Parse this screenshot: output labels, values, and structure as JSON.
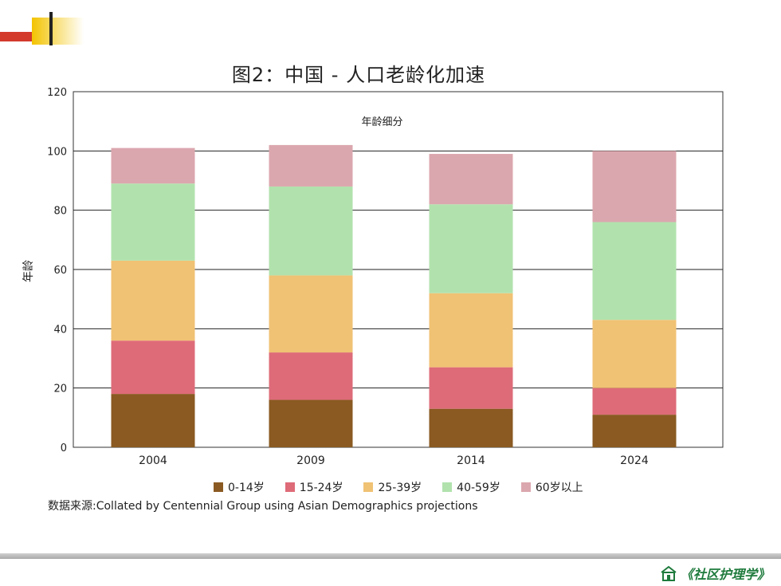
{
  "slide": {
    "footer_logo_text": "《社区护理学》",
    "accent_colors": {
      "corner_yellow": "#f3c300",
      "corner_red": "#cf2f2f",
      "footer_green": "#1e7a3c"
    }
  },
  "chart_data": {
    "type": "bar",
    "stacked": true,
    "title": "图2：中国 - 人口老龄化加速",
    "subtitle": "年龄细分",
    "ylabel": "年龄",
    "xlabel": "",
    "ylim": [
      0,
      120
    ],
    "yticks": [
      "0",
      "20",
      "40",
      "60",
      "80",
      "100",
      "120"
    ],
    "categories": [
      "2004",
      "2009",
      "2014",
      "2024"
    ],
    "series": [
      {
        "name": "0-14岁",
        "color": "#8a5a22",
        "values": [
          18,
          16,
          13,
          11
        ]
      },
      {
        "name": "15-24岁",
        "color": "#de6b78",
        "values": [
          18,
          16,
          14,
          9
        ]
      },
      {
        "name": "25-39岁",
        "color": "#f0c274",
        "values": [
          27,
          26,
          25,
          23
        ]
      },
      {
        "name": "40-59岁",
        "color": "#b1e2ad",
        "values": [
          26,
          30,
          30,
          33
        ]
      },
      {
        "name": "60岁以上",
        "color": "#dba7ae",
        "values": [
          12,
          14,
          17,
          24
        ]
      }
    ],
    "grid": true,
    "legend_position": "bottom",
    "source": "数据来源:Collated by Centennial Group using Asian Demographics projections"
  }
}
